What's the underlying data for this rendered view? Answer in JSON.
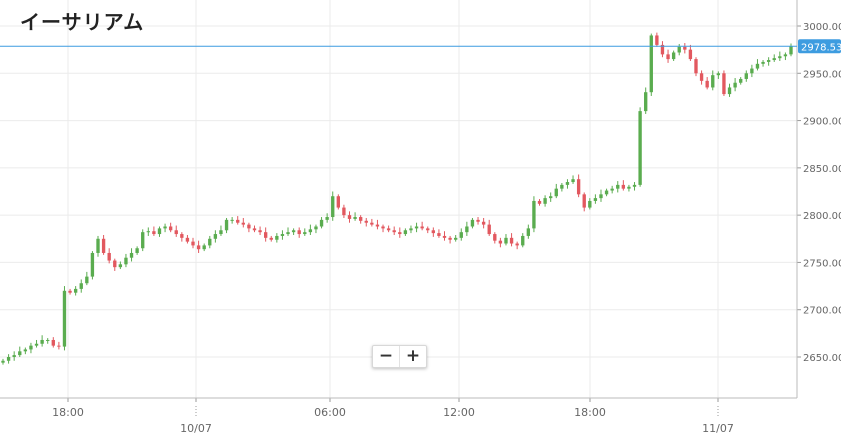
{
  "title": "イーサリアム",
  "zoom": {
    "minus_label": "−",
    "plus_label": "+"
  },
  "colors": {
    "up": "#5aac4f",
    "down": "#e2585f",
    "grid": "#ebebeb",
    "price_line": "#3d9ce0",
    "axis_text": "#666666"
  },
  "chart_data": {
    "type": "candlestick",
    "title": "イーサリアム",
    "ylim": [
      2600,
      3010
    ],
    "y_ticks": [
      "3000.00",
      "2950.00",
      "2900.00",
      "2850.00",
      "2800.00",
      "2750.00",
      "2700.00",
      "2650.00"
    ],
    "x_ticks": [
      {
        "label": "18:00",
        "date": ""
      },
      {
        "label": "",
        "date": "10/07"
      },
      {
        "label": "06:00",
        "date": ""
      },
      {
        "label": "12:00",
        "date": ""
      },
      {
        "label": "18:00",
        "date": ""
      },
      {
        "label": "",
        "date": "11/07"
      }
    ],
    "current_price": "2978.53",
    "current_value": 2978.53,
    "grid": true,
    "closes": [
      2646,
      2650,
      2652,
      2656,
      2658,
      2662,
      2664,
      2668,
      2668,
      2662,
      2661,
      2720,
      2718,
      2722,
      2728,
      2735,
      2760,
      2775,
      2760,
      2752,
      2745,
      2748,
      2755,
      2760,
      2765,
      2782,
      2783,
      2780,
      2786,
      2788,
      2784,
      2780,
      2776,
      2772,
      2768,
      2764,
      2768,
      2775,
      2780,
      2784,
      2795,
      2795,
      2792,
      2790,
      2786,
      2784,
      2782,
      2776,
      2774,
      2778,
      2780,
      2782,
      2784,
      2780,
      2782,
      2785,
      2788,
      2795,
      2798,
      2820,
      2808,
      2800,
      2796,
      2798,
      2794,
      2792,
      2790,
      2788,
      2786,
      2784,
      2782,
      2780,
      2784,
      2786,
      2788,
      2786,
      2784,
      2781,
      2778,
      2776,
      2774,
      2776,
      2782,
      2788,
      2795,
      2793,
      2790,
      2780,
      2773,
      2770,
      2776,
      2770,
      2768,
      2778,
      2786,
      2815,
      2812,
      2818,
      2820,
      2828,
      2832,
      2835,
      2838,
      2822,
      2808,
      2815,
      2818,
      2822,
      2826,
      2828,
      2832,
      2828,
      2830,
      2832,
      2910,
      2930,
      2990,
      2980,
      2970,
      2965,
      2972,
      2978,
      2975,
      2965,
      2950,
      2942,
      2935,
      2948,
      2950,
      2928,
      2935,
      2940,
      2944,
      2950,
      2955,
      2960,
      2962,
      2964,
      2966,
      2968,
      2970,
      2978.53
    ]
  }
}
